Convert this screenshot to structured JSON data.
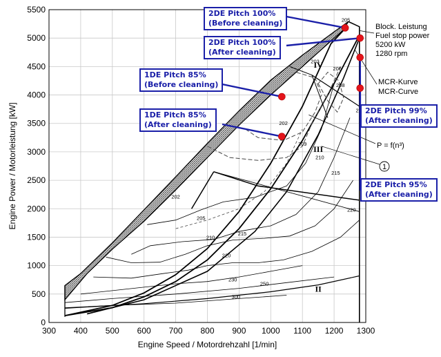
{
  "chart_data": {
    "type": "line",
    "xlabel": "Engine Speed / Motordrehzahl [1/min]",
    "ylabel": "Engine Power / Motorleistung [kW]",
    "xlim": [
      300,
      1300
    ],
    "ylim": [
      0,
      5500
    ],
    "x_ticks": [
      "300",
      "400",
      "500",
      "600",
      "700",
      "800",
      "900",
      "1000",
      "1100",
      "1200",
      "1300"
    ],
    "y_ticks": [
      "0",
      "500",
      "1000",
      "1500",
      "2000",
      "2500",
      "3000",
      "3500",
      "4000",
      "4500",
      "5000",
      "5500"
    ],
    "grid": true,
    "contour_labels": [
      "205",
      "203",
      "202",
      "209",
      "208",
      "206",
      "210",
      "215",
      "220",
      "219",
      "202",
      "205",
      "210",
      "215",
      "220",
      "230",
      "250",
      "300"
    ],
    "region_labels": [
      "IV",
      "III",
      "II"
    ],
    "annotations": {
      "block": [
        "Block. Leistung",
        "Fuel stop power",
        "5200 kW",
        "1280 rpm"
      ],
      "mcr": [
        "MCR-Kurve",
        "MCR-Curve"
      ],
      "propeller": "P = f(n³)",
      "circle": "1"
    },
    "points": [
      {
        "label": [
          "2DE Pitch 100%",
          "(Before cleaning)"
        ],
        "x": 1235,
        "y": 5180
      },
      {
        "label": [
          "2DE Pitch 100%",
          "(After cleaning)"
        ],
        "x": 1282,
        "y": 5000
      },
      {
        "label": [
          "1DE Pitch 85%",
          "(Before cleaning)"
        ],
        "x": 1035,
        "y": 3970
      },
      {
        "label": [
          "1DE Pitch 85%",
          "(After cleaning)"
        ],
        "x": 1035,
        "y": 3270
      },
      {
        "label": [
          "2DE Pitch 99%",
          "(After cleaning)"
        ],
        "x": 1282,
        "y": 4660
      },
      {
        "label": [
          "2DE Pitch 95%",
          "(After cleaning)"
        ],
        "x": 1282,
        "y": 4120
      }
    ],
    "point_color": "#e3141b",
    "callout_color": "#1a1fa8"
  }
}
